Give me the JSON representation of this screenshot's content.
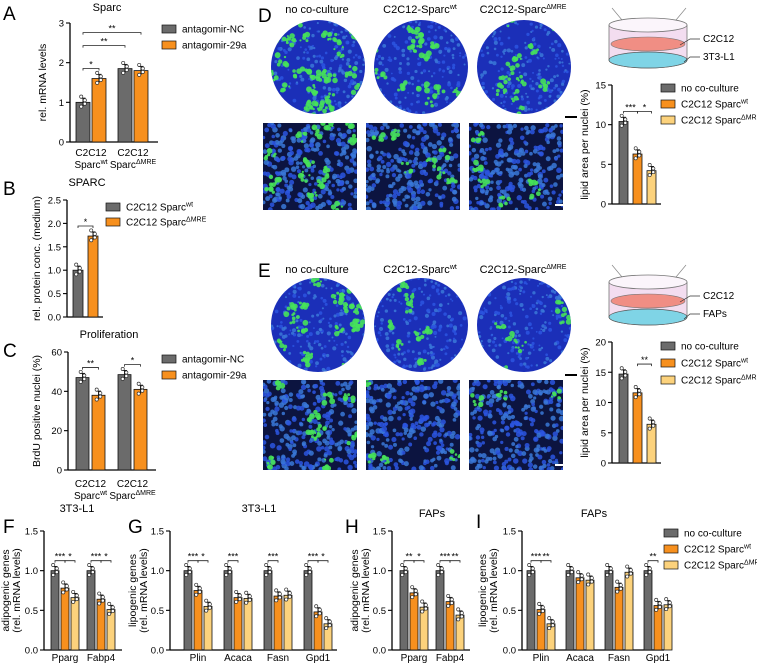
{
  "panel_labels": [
    "A",
    "B",
    "C",
    "D",
    "E",
    "F",
    "G",
    "H",
    "I"
  ],
  "colors": {
    "gray": "#6b6b6b",
    "orange": "#f7901e",
    "light_orange": "#fcd27c",
    "nuclei_blue": "#2a3fd0",
    "lipid_green": "#3fe060"
  },
  "micrographs": {
    "D": {
      "titles": [
        {
          "text": "no co-culture"
        },
        {
          "text": "C2C12-Sparc",
          "sup": "wt"
        },
        {
          "text": "C2C12-Sparc",
          "sup": "ΔMRE"
        }
      ],
      "dish_labels": [
        "C2C12",
        "3T3-L1"
      ]
    },
    "E": {
      "titles": [
        {
          "text": "no co-culture"
        },
        {
          "text": "C2C12-Sparc",
          "sup": "wt"
        },
        {
          "text": "C2C12-Sparc",
          "sup": "ΔMRE"
        }
      ],
      "dish_labels": [
        "C2C12",
        "FAPs"
      ]
    }
  },
  "chart_data": [
    {
      "panel": "A",
      "type": "bar",
      "title": "Sparc",
      "ylabel": [
        "rel. mRNA levels"
      ],
      "ylim": [
        0,
        3
      ],
      "yticks": [
        "0",
        "1",
        "2",
        "3"
      ],
      "categories": [
        {
          "line1": "C2C12",
          "line2": "Sparc",
          "sup": "wt"
        },
        {
          "line1": "C2C12",
          "line2": "Sparc",
          "sup": "ΔMRE"
        }
      ],
      "series": [
        {
          "name": {
            "text": "antagomir-NC"
          },
          "color": "#6b6b6b",
          "values": [
            1.0,
            1.85
          ]
        },
        {
          "name": {
            "text": "antagomir-29a"
          },
          "color": "#f7901e",
          "values": [
            1.6,
            1.8
          ]
        }
      ],
      "significance": [
        {
          "from": [
            0,
            0
          ],
          "to": [
            0,
            1
          ],
          "label": "*",
          "level": 0
        },
        {
          "from": [
            0,
            0
          ],
          "to": [
            1,
            0
          ],
          "label": "**",
          "level": 1
        },
        {
          "from": [
            0,
            0
          ],
          "to": [
            1,
            1
          ],
          "label": "**",
          "level": 2
        }
      ],
      "legend": "right"
    },
    {
      "panel": "B",
      "type": "bar",
      "title": "SPARC",
      "ylabel": [
        "rel. protein conc. (medium)"
      ],
      "ylim": [
        0,
        2.5
      ],
      "yticks": [
        "0.0",
        "0.5",
        "1.0",
        "1.5",
        "2.0",
        "2.5"
      ],
      "series": [
        {
          "name": {
            "text": "C2C12 Sparc",
            "sup": "wt"
          },
          "color": "#6b6b6b",
          "values": [
            1.0
          ]
        },
        {
          "name": {
            "text": "C2C12 Sparc",
            "sup": "ΔMRE"
          },
          "color": "#f7901e",
          "values": [
            1.73
          ]
        }
      ],
      "significance": [
        {
          "from": [
            0,
            0
          ],
          "to": [
            0,
            1
          ],
          "label": "*",
          "level": 0
        }
      ],
      "legend": "right"
    },
    {
      "panel": "C",
      "type": "bar",
      "title": "Proliferation",
      "ylabel": [
        "BrdU positive nuclei (%)"
      ],
      "ylim": [
        0,
        60
      ],
      "yticks": [
        "0",
        "20",
        "40",
        "60"
      ],
      "categories": [
        {
          "line1": "C2C12",
          "line2": "Sparc",
          "sup": "wt"
        },
        {
          "line1": "C2C12",
          "line2": "Sparc",
          "sup": "ΔMRE"
        }
      ],
      "series": [
        {
          "name": {
            "text": "antagomir-NC"
          },
          "color": "#6b6b6b",
          "values": [
            47,
            48.5
          ]
        },
        {
          "name": {
            "text": "antagomir-29a"
          },
          "color": "#f7901e",
          "values": [
            38,
            41
          ]
        }
      ],
      "significance": [
        {
          "from": [
            0,
            0
          ],
          "to": [
            0,
            1
          ],
          "label": "**",
          "level": 0
        },
        {
          "from": [
            1,
            0
          ],
          "to": [
            1,
            1
          ],
          "label": "*",
          "level": 0
        }
      ],
      "legend": "right"
    },
    {
      "panel": "D",
      "type": "bar",
      "title": "",
      "ylabel": [
        "lipid area per nuclei (%)"
      ],
      "ylim": [
        0,
        15
      ],
      "yticks": [
        "0",
        "5",
        "10",
        "15"
      ],
      "series": [
        {
          "name": {
            "text": "no co-culture"
          },
          "color": "#6b6b6b",
          "values": [
            10.4
          ]
        },
        {
          "name": {
            "text": "C2C12 Sparc",
            "sup": "wt"
          },
          "color": "#f7901e",
          "values": [
            6.3
          ]
        },
        {
          "name": {
            "text": "C2C12 Sparc",
            "sup": "ΔMRE"
          },
          "color": "#fcd27c",
          "values": [
            4.2
          ]
        }
      ],
      "significance": [
        {
          "from": [
            0,
            0
          ],
          "to": [
            0,
            1
          ],
          "label": "***",
          "level": 0
        },
        {
          "from": [
            0,
            1
          ],
          "to": [
            0,
            2
          ],
          "label": "*",
          "level": 0
        }
      ],
      "legend": "right"
    },
    {
      "panel": "E",
      "type": "bar",
      "title": "",
      "ylabel": [
        "lipid area per nuclei (%)"
      ],
      "ylim": [
        0,
        20
      ],
      "yticks": [
        "0",
        "5",
        "10",
        "15",
        "20"
      ],
      "series": [
        {
          "name": {
            "text": "no co-culture"
          },
          "color": "#6b6b6b",
          "values": [
            14.7
          ]
        },
        {
          "name": {
            "text": "C2C12 Sparc",
            "sup": "wt"
          },
          "color": "#f7901e",
          "values": [
            11.6
          ]
        },
        {
          "name": {
            "text": "C2C12 Sparc",
            "sup": "ΔMRE"
          },
          "color": "#fcd27c",
          "values": [
            6.4
          ]
        }
      ],
      "significance": [
        {
          "from": [
            0,
            1
          ],
          "to": [
            0,
            2
          ],
          "label": "**",
          "level": 0
        }
      ],
      "legend": "right"
    },
    {
      "panel": "F",
      "type": "bar",
      "title": "3T3-L1",
      "ylabel": [
        "adipogenic genes",
        "(rel. mRNA levels)"
      ],
      "ylim": [
        0,
        1.5
      ],
      "yticks": [
        "0.0",
        "0.5",
        "1.0",
        "1.5"
      ],
      "categories": [
        {
          "line1": "Pparg"
        },
        {
          "line1": "Fabp4"
        }
      ],
      "series": [
        {
          "color": "#6b6b6b",
          "values": [
            1.0,
            1.0
          ]
        },
        {
          "color": "#f7901e",
          "values": [
            0.78,
            0.64
          ]
        },
        {
          "color": "#fcd27c",
          "values": [
            0.66,
            0.51
          ]
        }
      ],
      "significance": [
        {
          "from": [
            0,
            0
          ],
          "to": [
            0,
            1
          ],
          "label": "***",
          "level": 0
        },
        {
          "from": [
            0,
            1
          ],
          "to": [
            0,
            2
          ],
          "label": "*",
          "level": 0
        },
        {
          "from": [
            1,
            0
          ],
          "to": [
            1,
            1
          ],
          "label": "***",
          "level": 0
        },
        {
          "from": [
            1,
            1
          ],
          "to": [
            1,
            2
          ],
          "label": "*",
          "level": 0
        }
      ]
    },
    {
      "panel": "G",
      "type": "bar",
      "title": "3T3-L1",
      "ylabel": [
        "lipogenic genes",
        "(rel. mRNA levels)"
      ],
      "ylim": [
        0,
        1.5
      ],
      "yticks": [
        "0.0",
        "0.5",
        "1.0",
        "1.5"
      ],
      "categories": [
        {
          "line1": "Plin"
        },
        {
          "line1": "Acaca"
        },
        {
          "line1": "Fasn"
        },
        {
          "line1": "Gpd1"
        }
      ],
      "series": [
        {
          "color": "#6b6b6b",
          "values": [
            1.0,
            1.0,
            1.0,
            1.0
          ]
        },
        {
          "color": "#f7901e",
          "values": [
            0.75,
            0.66,
            0.68,
            0.48
          ]
        },
        {
          "color": "#fcd27c",
          "values": [
            0.55,
            0.65,
            0.69,
            0.33
          ]
        }
      ],
      "significance": [
        {
          "from": [
            0,
            0
          ],
          "to": [
            0,
            1
          ],
          "label": "***",
          "level": 0
        },
        {
          "from": [
            0,
            1
          ],
          "to": [
            0,
            2
          ],
          "label": "*",
          "level": 0
        },
        {
          "from": [
            1,
            0
          ],
          "to": [
            1,
            1
          ],
          "label": "***",
          "level": 0
        },
        {
          "from": [
            2,
            0
          ],
          "to": [
            2,
            1
          ],
          "label": "***",
          "level": 0
        },
        {
          "from": [
            3,
            0
          ],
          "to": [
            3,
            1
          ],
          "label": "***",
          "level": 0
        },
        {
          "from": [
            3,
            1
          ],
          "to": [
            3,
            2
          ],
          "label": "*",
          "level": 0
        }
      ]
    },
    {
      "panel": "H",
      "type": "bar",
      "title": "FAPs",
      "ylabel": [
        "adipogenic genes",
        "(rel. mRNA levels)"
      ],
      "ylim": [
        0,
        1.5
      ],
      "yticks": [
        "0.0",
        "0.5",
        "1.0",
        "1.5"
      ],
      "categories": [
        {
          "line1": "Pparg"
        },
        {
          "line1": "Fabp4"
        }
      ],
      "series": [
        {
          "color": "#6b6b6b",
          "values": [
            1.0,
            1.0
          ]
        },
        {
          "color": "#f7901e",
          "values": [
            0.72,
            0.61
          ]
        },
        {
          "color": "#fcd27c",
          "values": [
            0.54,
            0.44
          ]
        }
      ],
      "significance": [
        {
          "from": [
            0,
            0
          ],
          "to": [
            0,
            1
          ],
          "label": "**",
          "level": 0
        },
        {
          "from": [
            0,
            1
          ],
          "to": [
            0,
            2
          ],
          "label": "*",
          "level": 0
        },
        {
          "from": [
            1,
            0
          ],
          "to": [
            1,
            1
          ],
          "label": "***",
          "level": 0
        },
        {
          "from": [
            1,
            1
          ],
          "to": [
            1,
            2
          ],
          "label": "**",
          "level": 0
        }
      ]
    },
    {
      "panel": "I",
      "type": "bar",
      "title": "FAPs",
      "ylabel": [
        "lipogenic genes",
        "(rel. mRNA levels)"
      ],
      "ylim": [
        0,
        1.5
      ],
      "yticks": [
        "0.0",
        "0.5",
        "1.0",
        "1.5"
      ],
      "categories": [
        {
          "line1": "Plin"
        },
        {
          "line1": "Acaca"
        },
        {
          "line1": "Fasn"
        },
        {
          "line1": "Gpd1"
        }
      ],
      "series": [
        {
          "name": {
            "text": "no co-culture"
          },
          "color": "#6b6b6b",
          "values": [
            1.0,
            1.0,
            1.0,
            1.0
          ]
        },
        {
          "name": {
            "text": "C2C12 Sparc",
            "sup": "wt"
          },
          "color": "#f7901e",
          "values": [
            0.51,
            0.91,
            0.79,
            0.56
          ]
        },
        {
          "name": {
            "text": "C2C12 Sparc",
            "sup": "ΔMRE"
          },
          "color": "#fcd27c",
          "values": [
            0.33,
            0.88,
            0.98,
            0.57
          ]
        }
      ],
      "significance": [
        {
          "from": [
            0,
            0
          ],
          "to": [
            0,
            1
          ],
          "label": "***",
          "level": 0
        },
        {
          "from": [
            0,
            1
          ],
          "to": [
            0,
            2
          ],
          "label": "**",
          "level": 0
        },
        {
          "from": [
            3,
            0
          ],
          "to": [
            3,
            1
          ],
          "label": "**",
          "level": 0
        }
      ],
      "legend": "right"
    }
  ]
}
